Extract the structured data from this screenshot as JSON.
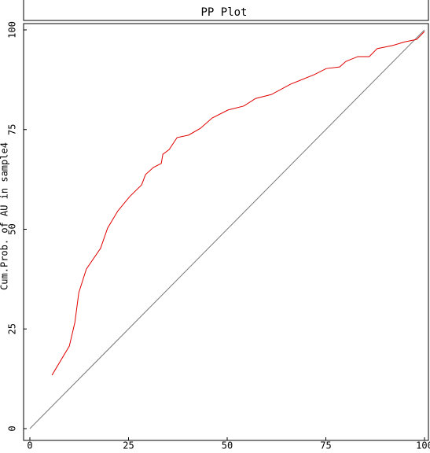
{
  "chart_data": {
    "type": "line",
    "title": "PP Plot",
    "y_label": "Cum.Prob. of AU in sample4",
    "color": "#e00000",
    "x": [
      5.6,
      10,
      11.4,
      12.4,
      14.3,
      17.9,
      19.7,
      22.3,
      25.3,
      28.3,
      29.3,
      31.3,
      33.3,
      33.7,
      35.3,
      37.3,
      40.2,
      43.2,
      46.2,
      50.2,
      54.2,
      57.2,
      61.2,
      66.1,
      72.1,
      75.1,
      78.5,
      80.1,
      83.1,
      86,
      88,
      92,
      95,
      98,
      100
    ],
    "values": [
      13.4,
      20.7,
      26.6,
      34.1,
      40,
      45.2,
      50.3,
      54.6,
      58.2,
      61.1,
      63.7,
      65.5,
      66.5,
      68.8,
      70,
      73,
      73.6,
      75.3,
      77.9,
      79.9,
      80.9,
      82.8,
      83.8,
      86.4,
      88.8,
      90.3,
      90.7,
      92.1,
      93.3,
      93.3,
      95.3,
      96.1,
      97,
      97.6,
      99.6
    ],
    "xlim": [
      0,
      100
    ],
    "ylim": [
      0,
      100
    ],
    "xticks": [
      0,
      25,
      50,
      75,
      100
    ],
    "yticks": [
      0,
      25,
      50,
      75,
      100
    ]
  }
}
